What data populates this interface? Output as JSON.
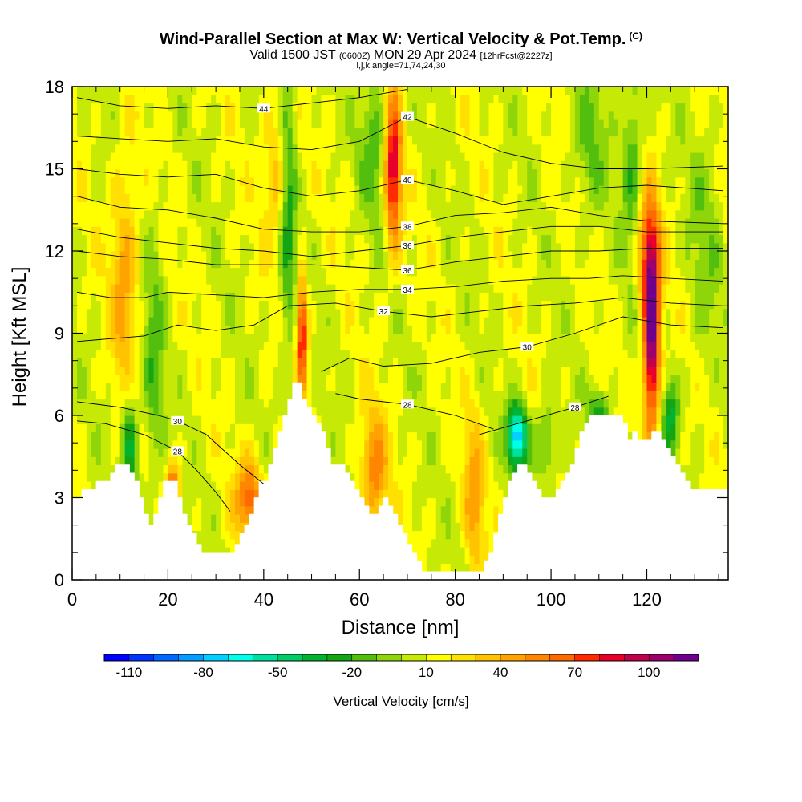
{
  "title": {
    "main": "Wind-Parallel Section at Max W: Vertical Velocity & Pot.Temp.",
    "copyright": "(C)",
    "valid_prefix": "Valid 1500 JST",
    "valid_utc": "(0600Z)",
    "valid_date": "MON 29 Apr 2024",
    "forecast": "[12hrFcst@2227z]",
    "params": "i,j,k,angle=71,74,24,30"
  },
  "chart_data": {
    "type": "heatmap",
    "xlabel": "Distance [nm]",
    "ylabel": "Height [Kft MSL]",
    "xlim": [
      0,
      137
    ],
    "ylim": [
      0,
      18
    ],
    "x_ticks": [
      "0",
      "20",
      "40",
      "60",
      "80",
      "100",
      "120"
    ],
    "x_tick_values": [
      0,
      20,
      40,
      60,
      80,
      100,
      120
    ],
    "y_ticks": [
      "0",
      "3",
      "6",
      "9",
      "12",
      "15",
      "18"
    ],
    "y_tick_values": [
      0,
      3,
      6,
      9,
      12,
      15,
      18
    ],
    "colorbar": {
      "label": "Vertical Velocity [cm/s]",
      "tick_labels": [
        "-110",
        "-80",
        "-50",
        "-20",
        "10",
        "40",
        "70",
        "100"
      ],
      "tick_values": [
        -110,
        -80,
        -50,
        -20,
        10,
        40,
        70,
        100
      ],
      "min": -120,
      "max": 120,
      "step": 10,
      "colors": [
        "#0000ff",
        "#0035ff",
        "#0068ff",
        "#009dff",
        "#00cfff",
        "#00ffe8",
        "#00e1a0",
        "#00cc66",
        "#00b330",
        "#14a514",
        "#52be0e",
        "#8ed60a",
        "#c6ea06",
        "#ffff00",
        "#ffe000",
        "#ffc300",
        "#ffa300",
        "#ff8700",
        "#ff6a00",
        "#ff2a00",
        "#e8002a",
        "#c0004a",
        "#9c006c",
        "#70008c"
      ]
    },
    "terrain_kft": [
      [
        0,
        3.0
      ],
      [
        1,
        3.0
      ],
      [
        2,
        3.3
      ],
      [
        4,
        3.3
      ],
      [
        5,
        3.6
      ],
      [
        7,
        3.6
      ],
      [
        8,
        3.9
      ],
      [
        9,
        4.2
      ],
      [
        11,
        4.2
      ],
      [
        12,
        3.9
      ],
      [
        13,
        3.6
      ],
      [
        14,
        3.0
      ],
      [
        15,
        2.4
      ],
      [
        16,
        2.0
      ],
      [
        17,
        2.4
      ],
      [
        18,
        3.0
      ],
      [
        19,
        3.6
      ],
      [
        21,
        3.6
      ],
      [
        22,
        3.0
      ],
      [
        23,
        2.4
      ],
      [
        24,
        2.0
      ],
      [
        25,
        1.7
      ],
      [
        26,
        1.3
      ],
      [
        27,
        1.0
      ],
      [
        33,
        1.0
      ],
      [
        34,
        1.3
      ],
      [
        35,
        1.7
      ],
      [
        36,
        2.0
      ],
      [
        37,
        2.4
      ],
      [
        38,
        3.0
      ],
      [
        39,
        3.6
      ],
      [
        41,
        4.2
      ],
      [
        42,
        4.8
      ],
      [
        43,
        5.4
      ],
      [
        44,
        6.0
      ],
      [
        45,
        6.6
      ],
      [
        46,
        7.2
      ],
      [
        47,
        7.2
      ],
      [
        48,
        6.6
      ],
      [
        49,
        6.3
      ],
      [
        50,
        6.0
      ],
      [
        51,
        5.7
      ],
      [
        52,
        5.4
      ],
      [
        53,
        4.8
      ],
      [
        54,
        4.2
      ],
      [
        56,
        4.2
      ],
      [
        57,
        3.9
      ],
      [
        58,
        3.6
      ],
      [
        59,
        3.3
      ],
      [
        60,
        3.0
      ],
      [
        61,
        2.7
      ],
      [
        62,
        2.4
      ],
      [
        63,
        2.4
      ],
      [
        64,
        2.7
      ],
      [
        65,
        3.0
      ],
      [
        66,
        2.7
      ],
      [
        67,
        2.4
      ],
      [
        68,
        2.0
      ],
      [
        69,
        1.7
      ],
      [
        70,
        1.3
      ],
      [
        71,
        1.0
      ],
      [
        72,
        0.7
      ],
      [
        73,
        0.3
      ],
      [
        85,
        0.3
      ],
      [
        86,
        0.7
      ],
      [
        87,
        1.0
      ],
      [
        88,
        1.7
      ],
      [
        89,
        2.4
      ],
      [
        90,
        3.0
      ],
      [
        91,
        3.6
      ],
      [
        92,
        3.9
      ],
      [
        93,
        4.2
      ],
      [
        94,
        4.2
      ],
      [
        95,
        3.9
      ],
      [
        96,
        3.6
      ],
      [
        97,
        3.3
      ],
      [
        98,
        3.0
      ],
      [
        100,
        3.0
      ],
      [
        101,
        3.3
      ],
      [
        102,
        3.6
      ],
      [
        103,
        3.9
      ],
      [
        104,
        4.2
      ],
      [
        105,
        4.8
      ],
      [
        106,
        5.4
      ],
      [
        107,
        5.7
      ],
      [
        108,
        6.0
      ],
      [
        114,
        6.0
      ],
      [
        115,
        5.7
      ],
      [
        116,
        5.1
      ],
      [
        117,
        5.4
      ],
      [
        118,
        5.1
      ],
      [
        120,
        5.1
      ],
      [
        121,
        5.4
      ],
      [
        122,
        5.4
      ],
      [
        123,
        5.1
      ],
      [
        124,
        4.8
      ],
      [
        125,
        4.5
      ],
      [
        126,
        4.2
      ],
      [
        127,
        3.9
      ],
      [
        128,
        3.6
      ],
      [
        129,
        3.3
      ],
      [
        137,
        3.3
      ]
    ],
    "w_features": [
      {
        "x": 11,
        "z": 11,
        "sx": 2.0,
        "sz": 3.0,
        "w": 35
      },
      {
        "x": 17,
        "z": 8,
        "sx": 1.5,
        "sz": 3.0,
        "w": -25
      },
      {
        "x": 12,
        "z": 5,
        "sx": 1.2,
        "sz": 1.5,
        "w": -45
      },
      {
        "x": 21,
        "z": 3,
        "sx": 1.0,
        "sz": 0.8,
        "w": 80
      },
      {
        "x": 37,
        "z": 3,
        "sx": 2.0,
        "sz": 1.0,
        "w": 55
      },
      {
        "x": 45,
        "z": 14,
        "sx": 1.2,
        "sz": 4.0,
        "w": -40
      },
      {
        "x": 48,
        "z": 9,
        "sx": 0.8,
        "sz": 1.5,
        "w": 80
      },
      {
        "x": 43,
        "z": 15,
        "sx": 2.0,
        "sz": 2.0,
        "w": 30
      },
      {
        "x": 67,
        "z": 15,
        "sx": 1.2,
        "sz": 2.0,
        "w": 80
      },
      {
        "x": 63,
        "z": 16,
        "sx": 2.0,
        "sz": 2.0,
        "w": -25
      },
      {
        "x": 63,
        "z": 4,
        "sx": 2.0,
        "sz": 1.5,
        "w": 45
      },
      {
        "x": 84,
        "z": 3,
        "sx": 1.5,
        "sz": 2.0,
        "w": 35
      },
      {
        "x": 93,
        "z": 5.2,
        "sx": 1.5,
        "sz": 0.8,
        "w": -90
      },
      {
        "x": 99,
        "z": 5,
        "sx": 1.5,
        "sz": 1.0,
        "w": -30
      },
      {
        "x": 110,
        "z": 6,
        "sx": 1.5,
        "sz": 0.6,
        "w": -40
      },
      {
        "x": 121,
        "z": 9,
        "sx": 1.2,
        "sz": 2.5,
        "w": 110
      },
      {
        "x": 120,
        "z": 12,
        "sx": 2.0,
        "sz": 1.5,
        "w": 45
      },
      {
        "x": 125,
        "z": 6,
        "sx": 1.2,
        "sz": 1.0,
        "w": -40
      },
      {
        "x": 117,
        "z": 15,
        "sx": 1.5,
        "sz": 3.0,
        "w": -30
      },
      {
        "x": 108,
        "z": 16,
        "sx": 2.5,
        "sz": 2.0,
        "w": -20
      },
      {
        "x": 132,
        "z": 12,
        "sx": 2.5,
        "sz": 3.0,
        "w": -15
      }
    ],
    "w_background": 10,
    "theta_contours": [
      {
        "label": "28",
        "pts": [
          [
            1,
            5.8
          ],
          [
            7,
            5.7
          ],
          [
            15,
            5.3
          ],
          [
            22,
            4.7
          ],
          [
            26,
            4.0
          ],
          [
            30,
            3.2
          ],
          [
            33,
            2.5
          ]
        ]
      },
      {
        "label": "28",
        "pts": [
          [
            85,
            5.3
          ],
          [
            95,
            5.8
          ],
          [
            105,
            6.3
          ],
          [
            112,
            6.7
          ]
        ]
      },
      {
        "label": "30",
        "pts": [
          [
            1,
            6.5
          ],
          [
            10,
            6.3
          ],
          [
            18,
            6.0
          ],
          [
            22,
            5.8
          ],
          [
            28,
            5.3
          ],
          [
            35,
            4.2
          ],
          [
            40,
            3.5
          ]
        ]
      },
      {
        "label": "28",
        "pts": [
          [
            55,
            6.8
          ],
          [
            60,
            6.6
          ],
          [
            70,
            6.4
          ],
          [
            80,
            6.0
          ],
          [
            88,
            5.5
          ]
        ]
      },
      {
        "label": "30",
        "pts": [
          [
            52,
            7.6
          ],
          [
            58,
            8.1
          ],
          [
            65,
            7.8
          ],
          [
            75,
            7.9
          ],
          [
            85,
            8.3
          ],
          [
            95,
            8.5
          ],
          [
            105,
            9.0
          ],
          [
            115,
            9.6
          ],
          [
            125,
            9.3
          ],
          [
            136,
            9.2
          ]
        ]
      },
      {
        "label": "32",
        "pts": [
          [
            1,
            8.7
          ],
          [
            8,
            8.8
          ],
          [
            15,
            8.9
          ],
          [
            22,
            9.3
          ],
          [
            30,
            9.1
          ],
          [
            38,
            9.3
          ],
          [
            45,
            10.0
          ],
          [
            55,
            10.1
          ],
          [
            65,
            9.8
          ],
          [
            75,
            9.6
          ],
          [
            85,
            9.8
          ],
          [
            95,
            10.0
          ],
          [
            105,
            10.1
          ],
          [
            115,
            10.3
          ],
          [
            125,
            10.1
          ],
          [
            136,
            10.0
          ]
        ]
      },
      {
        "label": "34",
        "pts": [
          [
            1,
            10.5
          ],
          [
            8,
            10.3
          ],
          [
            15,
            10.3
          ],
          [
            20,
            10.5
          ],
          [
            30,
            10.4
          ],
          [
            40,
            10.3
          ],
          [
            50,
            10.5
          ],
          [
            60,
            10.6
          ],
          [
            70,
            10.6
          ],
          [
            80,
            10.7
          ],
          [
            90,
            10.9
          ],
          [
            100,
            11.0
          ],
          [
            108,
            11.0
          ],
          [
            115,
            11.1
          ],
          [
            125,
            11.0
          ],
          [
            136,
            10.9
          ]
        ]
      },
      {
        "label": "36",
        "pts": [
          [
            1,
            12.0
          ],
          [
            10,
            11.8
          ],
          [
            20,
            11.7
          ],
          [
            30,
            11.5
          ],
          [
            40,
            11.5
          ],
          [
            50,
            11.5
          ],
          [
            60,
            11.4
          ],
          [
            70,
            11.3
          ],
          [
            80,
            11.6
          ],
          [
            90,
            11.8
          ],
          [
            100,
            12.0
          ],
          [
            110,
            12.0
          ],
          [
            120,
            12.1
          ],
          [
            136,
            12.1
          ]
        ]
      },
      {
        "label": "36",
        "pts": [
          [
            1,
            12.8
          ],
          [
            10,
            12.5
          ],
          [
            20,
            12.3
          ],
          [
            30,
            12.1
          ],
          [
            40,
            12.0
          ],
          [
            50,
            11.8
          ],
          [
            60,
            12.0
          ],
          [
            70,
            12.2
          ],
          [
            80,
            12.5
          ],
          [
            90,
            12.7
          ],
          [
            100,
            12.9
          ],
          [
            110,
            12.9
          ],
          [
            120,
            12.7
          ],
          [
            136,
            12.7
          ]
        ]
      },
      {
        "label": "38",
        "pts": [
          [
            1,
            14.0
          ],
          [
            10,
            13.6
          ],
          [
            20,
            13.5
          ],
          [
            30,
            13.2
          ],
          [
            40,
            12.8
          ],
          [
            50,
            12.7
          ],
          [
            60,
            12.7
          ],
          [
            70,
            12.9
          ],
          [
            80,
            13.3
          ],
          [
            90,
            13.4
          ],
          [
            100,
            13.6
          ],
          [
            110,
            13.3
          ],
          [
            120,
            13.1
          ],
          [
            136,
            13.0
          ]
        ]
      },
      {
        "label": "40",
        "pts": [
          [
            1,
            15.0
          ],
          [
            10,
            14.8
          ],
          [
            20,
            14.7
          ],
          [
            30,
            14.8
          ],
          [
            40,
            14.3
          ],
          [
            50,
            14.0
          ],
          [
            60,
            14.2
          ],
          [
            70,
            14.6
          ],
          [
            80,
            14.2
          ],
          [
            90,
            13.7
          ],
          [
            100,
            14.0
          ],
          [
            110,
            14.3
          ],
          [
            120,
            14.4
          ],
          [
            136,
            14.2
          ]
        ]
      },
      {
        "label": "42",
        "pts": [
          [
            1,
            16.2
          ],
          [
            10,
            16.1
          ],
          [
            20,
            16.0
          ],
          [
            30,
            16.1
          ],
          [
            40,
            15.8
          ],
          [
            50,
            15.7
          ],
          [
            60,
            16.0
          ],
          [
            70,
            16.9
          ],
          [
            80,
            16.3
          ],
          [
            90,
            15.6
          ],
          [
            100,
            15.2
          ],
          [
            110,
            15.0
          ],
          [
            120,
            15.0
          ],
          [
            136,
            15.1
          ]
        ]
      },
      {
        "label": "44",
        "pts": [
          [
            1,
            17.6
          ],
          [
            10,
            17.3
          ],
          [
            20,
            17.2
          ],
          [
            30,
            17.3
          ],
          [
            40,
            17.2
          ],
          [
            50,
            17.4
          ],
          [
            60,
            17.6
          ],
          [
            70,
            17.9
          ]
        ]
      }
    ]
  }
}
